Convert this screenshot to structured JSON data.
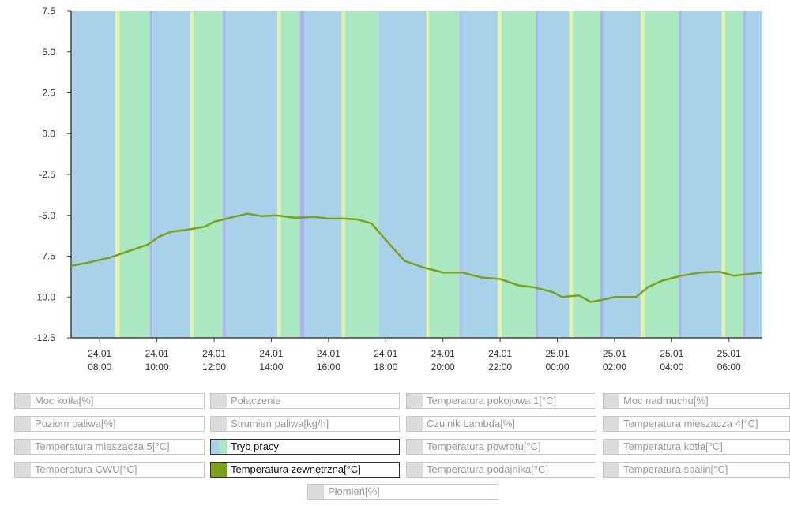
{
  "chart_data": {
    "type": "line",
    "y_ticks": [
      7.5,
      5.0,
      2.5,
      0.0,
      -2.5,
      -5.0,
      -7.5,
      -10.0,
      -12.5
    ],
    "y_tick_labels": [
      "7.5",
      "5.0",
      "2.5",
      "0.0",
      "-2.5",
      "-5.0",
      "-7.5",
      "-10.0",
      "-12.5"
    ],
    "ylim": [
      -12.5,
      7.5
    ],
    "xlim": [
      "2024-01-24T07:00",
      "2024-01-25T07:10"
    ],
    "x_ticks": [
      {
        "time": "2024-01-24T08:00",
        "date": "24.01",
        "hour": "08:00"
      },
      {
        "time": "2024-01-24T10:00",
        "date": "24.01",
        "hour": "10:00"
      },
      {
        "time": "2024-01-24T12:00",
        "date": "24.01",
        "hour": "12:00"
      },
      {
        "time": "2024-01-24T14:00",
        "date": "24.01",
        "hour": "14:00"
      },
      {
        "time": "2024-01-24T16:00",
        "date": "24.01",
        "hour": "16:00"
      },
      {
        "time": "2024-01-24T18:00",
        "date": "24.01",
        "hour": "18:00"
      },
      {
        "time": "2024-01-24T20:00",
        "date": "24.01",
        "hour": "20:00"
      },
      {
        "time": "2024-01-24T22:00",
        "date": "24.01",
        "hour": "22:00"
      },
      {
        "time": "2024-01-25T00:00",
        "date": "25.01",
        "hour": "00:00"
      },
      {
        "time": "2024-01-25T02:00",
        "date": "25.01",
        "hour": "02:00"
      },
      {
        "time": "2024-01-25T04:00",
        "date": "25.01",
        "hour": "04:00"
      },
      {
        "time": "2024-01-25T06:00",
        "date": "25.01",
        "hour": "06:00"
      }
    ],
    "series": [
      {
        "name": "Temperatura zewnętrzna[°C]",
        "color": "#7da01a",
        "points": [
          [
            "2024-01-24T07:00",
            -8.1
          ],
          [
            "2024-01-24T07:35",
            -7.9
          ],
          [
            "2024-01-24T08:20",
            -7.6
          ],
          [
            "2024-01-24T09:00",
            -7.2
          ],
          [
            "2024-01-24T09:40",
            -6.8
          ],
          [
            "2024-01-24T10:05",
            -6.3
          ],
          [
            "2024-01-24T10:30",
            -6.0
          ],
          [
            "2024-01-24T11:00",
            -5.9
          ],
          [
            "2024-01-24T11:40",
            -5.7
          ],
          [
            "2024-01-24T12:00",
            -5.4
          ],
          [
            "2024-01-24T12:40",
            -5.1
          ],
          [
            "2024-01-24T13:10",
            -4.9
          ],
          [
            "2024-01-24T13:40",
            -5.05
          ],
          [
            "2024-01-24T14:10",
            -5.0
          ],
          [
            "2024-01-24T14:50",
            -5.15
          ],
          [
            "2024-01-24T15:30",
            -5.1
          ],
          [
            "2024-01-24T16:00",
            -5.2
          ],
          [
            "2024-01-24T16:30",
            -5.2
          ],
          [
            "2024-01-24T17:00",
            -5.25
          ],
          [
            "2024-01-24T17:30",
            -5.5
          ],
          [
            "2024-01-24T18:00",
            -6.5
          ],
          [
            "2024-01-24T18:15",
            -7.0
          ],
          [
            "2024-01-24T18:40",
            -7.8
          ],
          [
            "2024-01-24T19:20",
            -8.2
          ],
          [
            "2024-01-24T20:00",
            -8.5
          ],
          [
            "2024-01-24T20:40",
            -8.5
          ],
          [
            "2024-01-24T21:20",
            -8.8
          ],
          [
            "2024-01-24T22:00",
            -8.9
          ],
          [
            "2024-01-24T22:40",
            -9.3
          ],
          [
            "2024-01-24T23:10",
            -9.4
          ],
          [
            "2024-01-24T23:50",
            -9.7
          ],
          [
            "2024-01-25T00:10",
            -10.0
          ],
          [
            "2024-01-25T00:45",
            -9.9
          ],
          [
            "2024-01-25T01:10",
            -10.3
          ],
          [
            "2024-01-25T01:30",
            -10.2
          ],
          [
            "2024-01-25T02:00",
            -10.0
          ],
          [
            "2024-01-25T02:45",
            -10.0
          ],
          [
            "2024-01-25T03:10",
            -9.4
          ],
          [
            "2024-01-25T03:40",
            -9.0
          ],
          [
            "2024-01-25T04:20",
            -8.7
          ],
          [
            "2024-01-25T05:00",
            -8.5
          ],
          [
            "2024-01-25T05:40",
            -8.45
          ],
          [
            "2024-01-25T06:10",
            -8.7
          ],
          [
            "2024-01-25T06:40",
            -8.6
          ],
          [
            "2024-01-25T07:10",
            -8.5
          ]
        ]
      }
    ],
    "mode_bands": {
      "name": "Tryb pracy",
      "colors": {
        "blue": "#a8d2ea",
        "green": "#a9e8c0",
        "yellow": "#e2f2a8",
        "purple": "#aeb2f0"
      },
      "segments": [
        [
          "2024-01-24T07:00",
          "2024-01-24T08:33",
          "blue"
        ],
        [
          "2024-01-24T08:33",
          "2024-01-24T08:42",
          "yellow"
        ],
        [
          "2024-01-24T08:42",
          "2024-01-24T09:45",
          "green"
        ],
        [
          "2024-01-24T09:45",
          "2024-01-24T09:51",
          "purple"
        ],
        [
          "2024-01-24T09:51",
          "2024-01-24T11:10",
          "blue"
        ],
        [
          "2024-01-24T11:10",
          "2024-01-24T11:17",
          "yellow"
        ],
        [
          "2024-01-24T11:17",
          "2024-01-24T12:18",
          "green"
        ],
        [
          "2024-01-24T12:18",
          "2024-01-24T12:24",
          "purple"
        ],
        [
          "2024-01-24T12:24",
          "2024-01-24T14:13",
          "blue"
        ],
        [
          "2024-01-24T14:13",
          "2024-01-24T14:20",
          "yellow"
        ],
        [
          "2024-01-24T14:20",
          "2024-01-24T15:00",
          "green"
        ],
        [
          "2024-01-24T15:00",
          "2024-01-24T15:10",
          "purple"
        ],
        [
          "2024-01-24T15:10",
          "2024-01-24T16:28",
          "blue"
        ],
        [
          "2024-01-24T16:28",
          "2024-01-24T16:35",
          "yellow"
        ],
        [
          "2024-01-24T16:35",
          "2024-01-24T17:45",
          "green"
        ],
        [
          "2024-01-24T17:45",
          "2024-01-24T19:25",
          "blue"
        ],
        [
          "2024-01-24T19:25",
          "2024-01-24T19:31",
          "yellow"
        ],
        [
          "2024-01-24T19:31",
          "2024-01-24T20:35",
          "green"
        ],
        [
          "2024-01-24T20:35",
          "2024-01-24T20:40",
          "purple"
        ],
        [
          "2024-01-24T20:40",
          "2024-01-24T21:55",
          "blue"
        ],
        [
          "2024-01-24T21:55",
          "2024-01-24T22:03",
          "yellow"
        ],
        [
          "2024-01-24T22:03",
          "2024-01-24T23:15",
          "green"
        ],
        [
          "2024-01-24T23:15",
          "2024-01-24T23:20",
          "purple"
        ],
        [
          "2024-01-24T23:20",
          "2024-01-25T00:25",
          "blue"
        ],
        [
          "2024-01-25T00:25",
          "2024-01-25T00:33",
          "yellow"
        ],
        [
          "2024-01-25T00:33",
          "2024-01-25T01:30",
          "green"
        ],
        [
          "2024-01-25T01:30",
          "2024-01-25T01:36",
          "purple"
        ],
        [
          "2024-01-25T01:36",
          "2024-01-25T02:55",
          "blue"
        ],
        [
          "2024-01-25T02:55",
          "2024-01-25T03:03",
          "yellow"
        ],
        [
          "2024-01-25T03:03",
          "2024-01-25T04:15",
          "green"
        ],
        [
          "2024-01-25T04:15",
          "2024-01-25T04:20",
          "purple"
        ],
        [
          "2024-01-25T04:20",
          "2024-01-25T05:45",
          "blue"
        ],
        [
          "2024-01-25T05:45",
          "2024-01-25T05:52",
          "yellow"
        ],
        [
          "2024-01-25T05:52",
          "2024-01-25T06:30",
          "green"
        ],
        [
          "2024-01-25T06:30",
          "2024-01-25T06:35",
          "purple"
        ],
        [
          "2024-01-25T06:35",
          "2024-01-25T07:10",
          "blue"
        ]
      ]
    }
  },
  "legend": {
    "items": [
      {
        "label": "Moc kotła[%]",
        "active": false
      },
      {
        "label": "Połączenie",
        "active": false
      },
      {
        "label": "Temperatura pokojowa 1[°C]",
        "active": false
      },
      {
        "label": "Moc nadmuchu[%]",
        "active": false
      },
      {
        "label": "Poziom paliwa[%]",
        "active": false
      },
      {
        "label": "Strumień paliwa[kg/h]",
        "active": false
      },
      {
        "label": "Czujnik Lambda[%]",
        "active": false
      },
      {
        "label": "Temperatura mieszacza 4[°C]",
        "active": false
      },
      {
        "label": "Temperatura mieszacza 5[°C]",
        "active": false
      },
      {
        "label": "Tryb pracy",
        "active": true,
        "swatch": "tryb"
      },
      {
        "label": "Temperatura powrotu[°C]",
        "active": false
      },
      {
        "label": "Temperatura kotła[°C]",
        "active": false
      },
      {
        "label": "Temperatura CWU[°C]",
        "active": false
      },
      {
        "label": "Temperatura zewnętrzna[°C]",
        "active": true,
        "swatch": "#7da01a"
      },
      {
        "label": "Temperatura podajnika[°C]",
        "active": false
      },
      {
        "label": "Temperatura spalin[°C]",
        "active": false
      },
      {
        "label": "Płomień[%]",
        "active": false
      }
    ]
  }
}
